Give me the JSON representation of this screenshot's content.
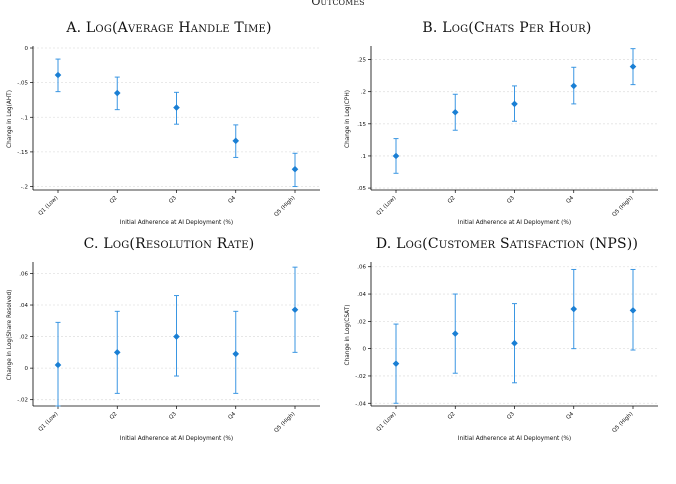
{
  "figure": {
    "title": "Outcomes"
  },
  "colors": {
    "marker": "#1a7fd4",
    "errorbar": "#3a96e2",
    "grid": "#e2e2e2",
    "axis": "#000000"
  },
  "chart_data": [
    {
      "type": "scatter",
      "title": "A. Log(Average Handle Time)",
      "xlabel": "Initial Adherence at AI Deployment (%)",
      "ylabel": "Change in Log(AHT)",
      "categories": [
        "Q1 (Low)",
        "Q2",
        "Q3",
        "Q4",
        "Q5 (High)"
      ],
      "values": [
        -0.039,
        -0.065,
        -0.086,
        -0.134,
        -0.175
      ],
      "ci_low": [
        -0.063,
        -0.089,
        -0.11,
        -0.158,
        -0.2
      ],
      "ci_high": [
        -0.016,
        -0.042,
        -0.064,
        -0.111,
        -0.152
      ],
      "yticks": [
        0,
        -0.05,
        -0.1,
        -0.15,
        -0.2
      ],
      "ytick_labels": [
        "0",
        "-.05",
        "-.1",
        "-.15",
        "-.2"
      ],
      "ylim": [
        -0.205,
        0.0
      ],
      "grid": true
    },
    {
      "type": "scatter",
      "title": "B. Log(Chats Per Hour)",
      "xlabel": "Initial Adherence at AI Deployment (%)",
      "ylabel": "Change in Log(CPH)",
      "categories": [
        "Q1 (Low)",
        "Q2",
        "Q3",
        "Q4",
        "Q5 (High)"
      ],
      "values": [
        0.1,
        0.168,
        0.181,
        0.209,
        0.239
      ],
      "ci_low": [
        0.073,
        0.14,
        0.154,
        0.181,
        0.211
      ],
      "ci_high": [
        0.127,
        0.196,
        0.209,
        0.238,
        0.267
      ],
      "yticks": [
        0.05,
        0.1,
        0.15,
        0.2,
        0.25
      ],
      "ytick_labels": [
        ".05",
        ".1",
        ".15",
        ".2",
        ".25"
      ],
      "ylim": [
        0.047,
        0.268
      ],
      "grid": true
    },
    {
      "type": "scatter",
      "title": "C. Log(Resolution Rate)",
      "xlabel": "Initial Adherence at AI Deployment (%)",
      "ylabel": "Change in Log(Share Resolved)",
      "categories": [
        "Q1 (Low)",
        "Q2",
        "Q3",
        "Q4",
        "Q5 (High)"
      ],
      "values": [
        0.002,
        0.01,
        0.02,
        0.009,
        0.037
      ],
      "ci_low": [
        -0.024,
        -0.016,
        -0.005,
        -0.016,
        0.01
      ],
      "ci_high": [
        0.029,
        0.036,
        0.046,
        0.036,
        0.064
      ],
      "yticks": [
        -0.02,
        0,
        0.02,
        0.04,
        0.06
      ],
      "ytick_labels": [
        "-.02",
        "0",
        ".02",
        ".04",
        ".06"
      ],
      "ylim": [
        -0.024,
        0.066
      ],
      "grid": true
    },
    {
      "type": "scatter",
      "title": "D. Log(Customer Satisfaction (NPS))",
      "xlabel": "Initial Adherence at AI Deployment (%)",
      "ylabel": "Change in Log(CSAT)",
      "categories": [
        "Q1 (Low)",
        "Q2",
        "Q3",
        "Q4",
        "Q5 (High)"
      ],
      "values": [
        -0.011,
        0.011,
        0.004,
        0.029,
        0.028
      ],
      "ci_low": [
        -0.04,
        -0.018,
        -0.025,
        0.0,
        -0.001
      ],
      "ci_high": [
        0.018,
        0.04,
        0.033,
        0.058,
        0.058
      ],
      "yticks": [
        -0.04,
        -0.02,
        0,
        0.02,
        0.04,
        0.06
      ],
      "ytick_labels": [
        "-.04",
        "-.02",
        "0",
        ".02",
        ".04",
        ".06"
      ],
      "ylim": [
        -0.042,
        0.062
      ],
      "grid": true
    }
  ]
}
